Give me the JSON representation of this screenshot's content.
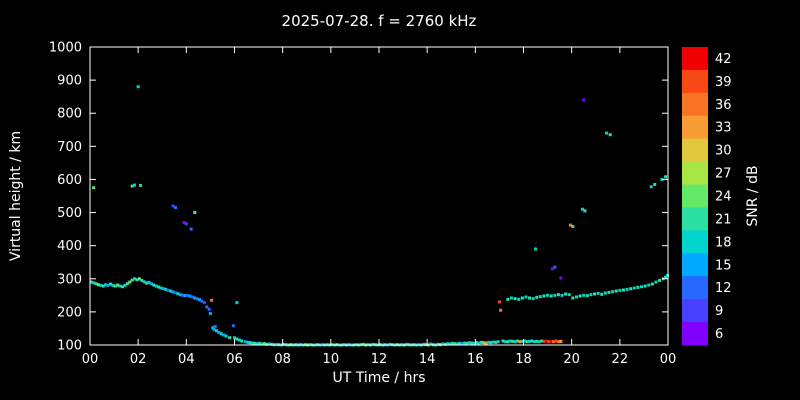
{
  "page": {
    "background": "#000000",
    "text_color": "#ffffff"
  },
  "chart_data": {
    "type": "scatter",
    "title": "2025-07-28. f = 2760 kHz",
    "xlabel": "UT Time / hrs",
    "ylabel": "Virtual height / km",
    "xlim": [
      0,
      24
    ],
    "ylim": [
      100,
      1000
    ],
    "grid": false,
    "xtick_values": [
      0,
      2,
      4,
      6,
      8,
      10,
      12,
      14,
      16,
      18,
      20,
      22,
      24
    ],
    "xtick_labels": [
      "00",
      "02",
      "04",
      "06",
      "08",
      "10",
      "12",
      "14",
      "16",
      "18",
      "20",
      "22",
      "00"
    ],
    "ytick_values": [
      100,
      200,
      300,
      400,
      500,
      600,
      700,
      800,
      900,
      1000
    ],
    "colorbar": {
      "label": "SNR / dB",
      "tick_values": [
        6,
        9,
        12,
        15,
        18,
        21,
        24,
        27,
        30,
        33,
        36,
        39,
        42
      ],
      "stops": [
        [
          6,
          "#8000ff"
        ],
        [
          9,
          "#4840ff"
        ],
        [
          12,
          "#2868ff"
        ],
        [
          15,
          "#00a8ff"
        ],
        [
          18,
          "#00d4cc"
        ],
        [
          21,
          "#2ce0a4"
        ],
        [
          24,
          "#64e868"
        ],
        [
          27,
          "#a8e444"
        ],
        [
          30,
          "#e0c83c"
        ],
        [
          33,
          "#f89c34"
        ],
        [
          36,
          "#f87424"
        ],
        [
          39,
          "#f84814"
        ],
        [
          42,
          "#f00000"
        ]
      ]
    },
    "points": [
      [
        0.05,
        290,
        21
      ],
      [
        0.15,
        288,
        18
      ],
      [
        0.15,
        575,
        24
      ],
      [
        0.25,
        285,
        21
      ],
      [
        0.35,
        282,
        24
      ],
      [
        0.45,
        280,
        18
      ],
      [
        0.55,
        278,
        21
      ],
      [
        0.65,
        282,
        18
      ],
      [
        0.75,
        280,
        15
      ],
      [
        0.85,
        284,
        21
      ],
      [
        0.95,
        280,
        18
      ],
      [
        1.05,
        278,
        21
      ],
      [
        1.15,
        281,
        24
      ],
      [
        1.25,
        278,
        18
      ],
      [
        1.35,
        276,
        21
      ],
      [
        1.45,
        280,
        18
      ],
      [
        1.55,
        285,
        21
      ],
      [
        1.65,
        290,
        24
      ],
      [
        1.75,
        296,
        21
      ],
      [
        1.75,
        580,
        21
      ],
      [
        1.85,
        300,
        18
      ],
      [
        1.85,
        583,
        18
      ],
      [
        1.95,
        297,
        21
      ],
      [
        2.0,
        880,
        18
      ],
      [
        2.05,
        300,
        24
      ],
      [
        2.1,
        582,
        21
      ],
      [
        2.15,
        295,
        21
      ],
      [
        2.25,
        291,
        18
      ],
      [
        2.35,
        287,
        21
      ],
      [
        2.45,
        289,
        18
      ],
      [
        2.55,
        285,
        15
      ],
      [
        2.65,
        281,
        21
      ],
      [
        2.75,
        278,
        18
      ],
      [
        2.85,
        275,
        21
      ],
      [
        2.95,
        272,
        18
      ],
      [
        3.05,
        270,
        15
      ],
      [
        3.15,
        268,
        18
      ],
      [
        3.25,
        265,
        12
      ],
      [
        3.35,
        263,
        18
      ],
      [
        3.45,
        260,
        15
      ],
      [
        3.45,
        520,
        9
      ],
      [
        3.55,
        258,
        12
      ],
      [
        3.55,
        515,
        12
      ],
      [
        3.65,
        255,
        18
      ],
      [
        3.75,
        252,
        15
      ],
      [
        3.85,
        250,
        12
      ],
      [
        3.9,
        470,
        6
      ],
      [
        3.95,
        249,
        15
      ],
      [
        4.0,
        466,
        9
      ],
      [
        4.05,
        250,
        12
      ],
      [
        4.15,
        248,
        15
      ],
      [
        4.2,
        450,
        12
      ],
      [
        4.25,
        245,
        12
      ],
      [
        4.35,
        242,
        15
      ],
      [
        4.35,
        500,
        24
      ],
      [
        4.45,
        240,
        12
      ],
      [
        4.55,
        237,
        15
      ],
      [
        4.65,
        232,
        12
      ],
      [
        4.75,
        228,
        9
      ],
      [
        4.85,
        215,
        12
      ],
      [
        4.95,
        208,
        12
      ],
      [
        5.0,
        195,
        15
      ],
      [
        5.05,
        235,
        36
      ],
      [
        5.1,
        152,
        18
      ],
      [
        5.15,
        147,
        15
      ],
      [
        5.2,
        156,
        12
      ],
      [
        5.25,
        143,
        18
      ],
      [
        5.35,
        138,
        15
      ],
      [
        5.45,
        134,
        18
      ],
      [
        5.55,
        130,
        15
      ],
      [
        5.65,
        127,
        18
      ],
      [
        5.8,
        122,
        21
      ],
      [
        5.95,
        158,
        12
      ],
      [
        6.0,
        122,
        18
      ],
      [
        6.1,
        228,
        18
      ],
      [
        6.1,
        118,
        21
      ],
      [
        6.2,
        115,
        18
      ],
      [
        6.3,
        112,
        21
      ],
      [
        6.45,
        110,
        15
      ],
      [
        6.55,
        108,
        18
      ],
      [
        6.65,
        107,
        21
      ],
      [
        6.75,
        106,
        18
      ],
      [
        6.85,
        105,
        21
      ],
      [
        6.95,
        104,
        18
      ],
      [
        7.05,
        105,
        21
      ],
      [
        7.15,
        103,
        18
      ],
      [
        7.25,
        104,
        24
      ],
      [
        7.35,
        102,
        21
      ],
      [
        7.45,
        103,
        18
      ],
      [
        7.55,
        102,
        21
      ],
      [
        7.65,
        101,
        18
      ],
      [
        7.75,
        102,
        15
      ],
      [
        7.85,
        101,
        21
      ],
      [
        7.95,
        100,
        18
      ],
      [
        8.05,
        102,
        21
      ],
      [
        8.15,
        101,
        18
      ],
      [
        8.25,
        100,
        21
      ],
      [
        8.35,
        101,
        24
      ],
      [
        8.45,
        100,
        18
      ],
      [
        8.55,
        101,
        21
      ],
      [
        8.65,
        100,
        18
      ],
      [
        8.75,
        101,
        21
      ],
      [
        8.85,
        100,
        18
      ],
      [
        8.95,
        101,
        21
      ],
      [
        9.05,
        100,
        24
      ],
      [
        9.15,
        101,
        18
      ],
      [
        9.25,
        100,
        21
      ],
      [
        9.35,
        100,
        18
      ],
      [
        9.45,
        101,
        21
      ],
      [
        9.55,
        100,
        18
      ],
      [
        9.65,
        101,
        15
      ],
      [
        9.75,
        100,
        21
      ],
      [
        9.85,
        101,
        18
      ],
      [
        9.95,
        100,
        21
      ],
      [
        10.05,
        101,
        18
      ],
      [
        10.15,
        100,
        21
      ],
      [
        10.25,
        101,
        24
      ],
      [
        10.35,
        100,
        18
      ],
      [
        10.45,
        100,
        21
      ],
      [
        10.55,
        101,
        18
      ],
      [
        10.65,
        100,
        21
      ],
      [
        10.75,
        101,
        18
      ],
      [
        10.85,
        100,
        15
      ],
      [
        10.95,
        100,
        21
      ],
      [
        11.05,
        101,
        18
      ],
      [
        11.15,
        100,
        21
      ],
      [
        11.25,
        101,
        18
      ],
      [
        11.35,
        102,
        21
      ],
      [
        11.45,
        100,
        24
      ],
      [
        11.55,
        101,
        18
      ],
      [
        11.65,
        100,
        21
      ],
      [
        11.75,
        102,
        18
      ],
      [
        11.85,
        101,
        21
      ],
      [
        11.95,
        100,
        18
      ],
      [
        12.05,
        101,
        21
      ],
      [
        12.15,
        100,
        18
      ],
      [
        12.25,
        101,
        21
      ],
      [
        12.35,
        100,
        15
      ],
      [
        12.45,
        102,
        18
      ],
      [
        12.55,
        101,
        21
      ],
      [
        12.65,
        100,
        18
      ],
      [
        12.75,
        101,
        24
      ],
      [
        12.85,
        100,
        21
      ],
      [
        12.95,
        101,
        18
      ],
      [
        13.05,
        100,
        21
      ],
      [
        13.15,
        102,
        18
      ],
      [
        13.25,
        101,
        21
      ],
      [
        13.35,
        100,
        18
      ],
      [
        13.45,
        101,
        21
      ],
      [
        13.55,
        100,
        18
      ],
      [
        13.65,
        101,
        15
      ],
      [
        13.75,
        100,
        21
      ],
      [
        13.85,
        102,
        18
      ],
      [
        13.95,
        101,
        33
      ],
      [
        14.05,
        100,
        21
      ],
      [
        14.15,
        103,
        18
      ],
      [
        14.25,
        101,
        21
      ],
      [
        14.35,
        100,
        18
      ],
      [
        14.45,
        102,
        21
      ],
      [
        14.55,
        101,
        24
      ],
      [
        14.65,
        103,
        18
      ],
      [
        14.75,
        102,
        21
      ],
      [
        14.85,
        104,
        18
      ],
      [
        14.95,
        103,
        21
      ],
      [
        15.05,
        105,
        18
      ],
      [
        15.15,
        104,
        21
      ],
      [
        15.25,
        103,
        18
      ],
      [
        15.35,
        105,
        21
      ],
      [
        15.45,
        104,
        15
      ],
      [
        15.55,
        106,
        18
      ],
      [
        15.65,
        105,
        21
      ],
      [
        15.75,
        107,
        18
      ],
      [
        15.85,
        106,
        21
      ],
      [
        15.95,
        105,
        18
      ],
      [
        16.05,
        107,
        21
      ],
      [
        16.15,
        106,
        18
      ],
      [
        16.25,
        108,
        21
      ],
      [
        16.35,
        107,
        24
      ],
      [
        16.45,
        106,
        33
      ],
      [
        16.55,
        108,
        18
      ],
      [
        16.65,
        107,
        21
      ],
      [
        16.75,
        109,
        18
      ],
      [
        16.85,
        108,
        21
      ],
      [
        16.95,
        110,
        18
      ],
      [
        17.0,
        230,
        39
      ],
      [
        17.05,
        205,
        36
      ],
      [
        17.15,
        112,
        21
      ],
      [
        17.25,
        110,
        18
      ],
      [
        17.35,
        110,
        21
      ],
      [
        17.45,
        112,
        18
      ],
      [
        17.55,
        111,
        21
      ],
      [
        17.65,
        110,
        18
      ],
      [
        17.75,
        112,
        21
      ],
      [
        17.85,
        110,
        33
      ],
      [
        17.95,
        111,
        21
      ],
      [
        18.05,
        112,
        18
      ],
      [
        18.15,
        110,
        21
      ],
      [
        18.25,
        111,
        18
      ],
      [
        18.35,
        112,
        21
      ],
      [
        18.45,
        110,
        18
      ],
      [
        18.55,
        111,
        21
      ],
      [
        18.65,
        110,
        18
      ],
      [
        18.75,
        112,
        21
      ],
      [
        18.85,
        111,
        39
      ],
      [
        18.95,
        112,
        42
      ],
      [
        19.05,
        110,
        39
      ],
      [
        19.15,
        111,
        42
      ],
      [
        19.25,
        110,
        36
      ],
      [
        19.35,
        112,
        39
      ],
      [
        19.45,
        110,
        36
      ],
      [
        19.55,
        111,
        33
      ],
      [
        17.35,
        238,
        21
      ],
      [
        17.5,
        242,
        18
      ],
      [
        17.65,
        240,
        21
      ],
      [
        17.8,
        238,
        18
      ],
      [
        17.95,
        242,
        21
      ],
      [
        18.1,
        245,
        18
      ],
      [
        18.25,
        242,
        21
      ],
      [
        18.4,
        240,
        18
      ],
      [
        18.55,
        244,
        21
      ],
      [
        18.7,
        246,
        18
      ],
      [
        18.85,
        248,
        21
      ],
      [
        19.0,
        250,
        18
      ],
      [
        19.15,
        248,
        21
      ],
      [
        19.3,
        250,
        18
      ],
      [
        19.45,
        252,
        21
      ],
      [
        19.6,
        250,
        18
      ],
      [
        19.75,
        254,
        21
      ],
      [
        19.9,
        252,
        18
      ],
      [
        18.5,
        390,
        18
      ],
      [
        19.2,
        330,
        6
      ],
      [
        19.3,
        335,
        12
      ],
      [
        19.55,
        302,
        6
      ],
      [
        19.95,
        462,
        36
      ],
      [
        20.05,
        458,
        21
      ],
      [
        20.45,
        510,
        18
      ],
      [
        20.55,
        505,
        21
      ],
      [
        20.5,
        840,
        6
      ],
      [
        20.05,
        242,
        21
      ],
      [
        20.2,
        245,
        18
      ],
      [
        20.35,
        248,
        21
      ],
      [
        20.5,
        250,
        18
      ],
      [
        20.65,
        249,
        21
      ],
      [
        20.8,
        252,
        18
      ],
      [
        20.95,
        254,
        21
      ],
      [
        21.1,
        256,
        18
      ],
      [
        21.25,
        253,
        21
      ],
      [
        21.4,
        257,
        18
      ],
      [
        21.55,
        259,
        21
      ],
      [
        21.7,
        261,
        18
      ],
      [
        21.85,
        263,
        21
      ],
      [
        22.0,
        265,
        18
      ],
      [
        22.15,
        266,
        21
      ],
      [
        22.3,
        268,
        18
      ],
      [
        22.45,
        270,
        21
      ],
      [
        22.6,
        272,
        18
      ],
      [
        22.75,
        274,
        21
      ],
      [
        22.9,
        276,
        18
      ],
      [
        23.05,
        278,
        21
      ],
      [
        23.2,
        281,
        18
      ],
      [
        23.35,
        284,
        21
      ],
      [
        23.5,
        290,
        18
      ],
      [
        23.65,
        295,
        21
      ],
      [
        23.8,
        300,
        18
      ],
      [
        23.9,
        305,
        21
      ],
      [
        23.98,
        310,
        18
      ],
      [
        21.45,
        740,
        18
      ],
      [
        21.6,
        735,
        21
      ],
      [
        23.3,
        578,
        18
      ],
      [
        23.45,
        585,
        21
      ],
      [
        23.75,
        600,
        18
      ],
      [
        23.9,
        608,
        21
      ]
    ]
  }
}
